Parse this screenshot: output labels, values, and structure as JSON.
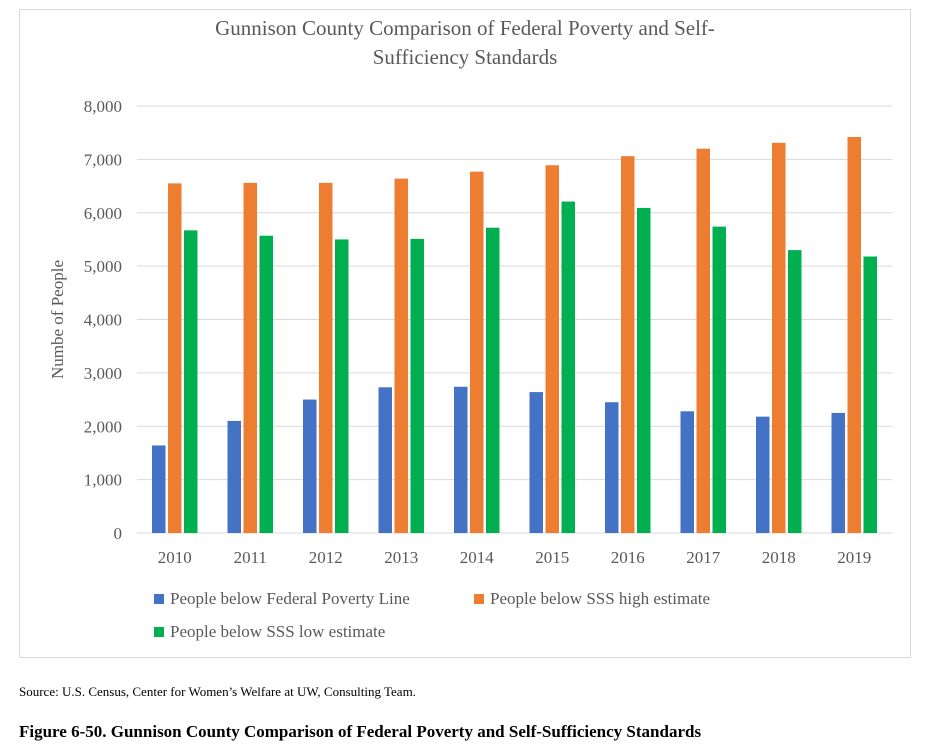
{
  "chart_data": {
    "type": "bar",
    "title_lines": [
      "Gunnison County Comparison of Federal Poverty and Self-",
      "Sufficiency Standards"
    ],
    "ylabel": "Numbe of People",
    "xlabel": "",
    "ylim": [
      0,
      8000
    ],
    "yticks": [
      0,
      1000,
      2000,
      3000,
      4000,
      5000,
      6000,
      7000,
      8000
    ],
    "ytick_labels": [
      "0",
      "1,000",
      "2,000",
      "3,000",
      "4,000",
      "5,000",
      "6,000",
      "7,000",
      "8,000"
    ],
    "categories": [
      "2010",
      "2011",
      "2012",
      "2013",
      "2014",
      "2015",
      "2016",
      "2017",
      "2018",
      "2019"
    ],
    "series": [
      {
        "name": "People below Federal Poverty Line",
        "color": "#4472c4",
        "values": [
          1640,
          2100,
          2500,
          2730,
          2740,
          2640,
          2450,
          2280,
          2180,
          2250
        ]
      },
      {
        "name": "People below SSS high estimate",
        "color": "#ed7d31",
        "values": [
          6550,
          6560,
          6560,
          6640,
          6770,
          6890,
          7060,
          7200,
          7310,
          7420
        ]
      },
      {
        "name": "People below SSS low estimate",
        "color": "#00b050",
        "values": [
          5670,
          5570,
          5500,
          5510,
          5720,
          6210,
          6090,
          5740,
          5300,
          5180
        ]
      }
    ],
    "grid": true,
    "legend_position": "bottom"
  },
  "source": "Source: U.S. Census, Center for Women’s Welfare at UW, Consulting Team.",
  "caption": "Figure 6-50. Gunnison County Comparison of Federal Poverty and Self-Sufficiency Standards"
}
